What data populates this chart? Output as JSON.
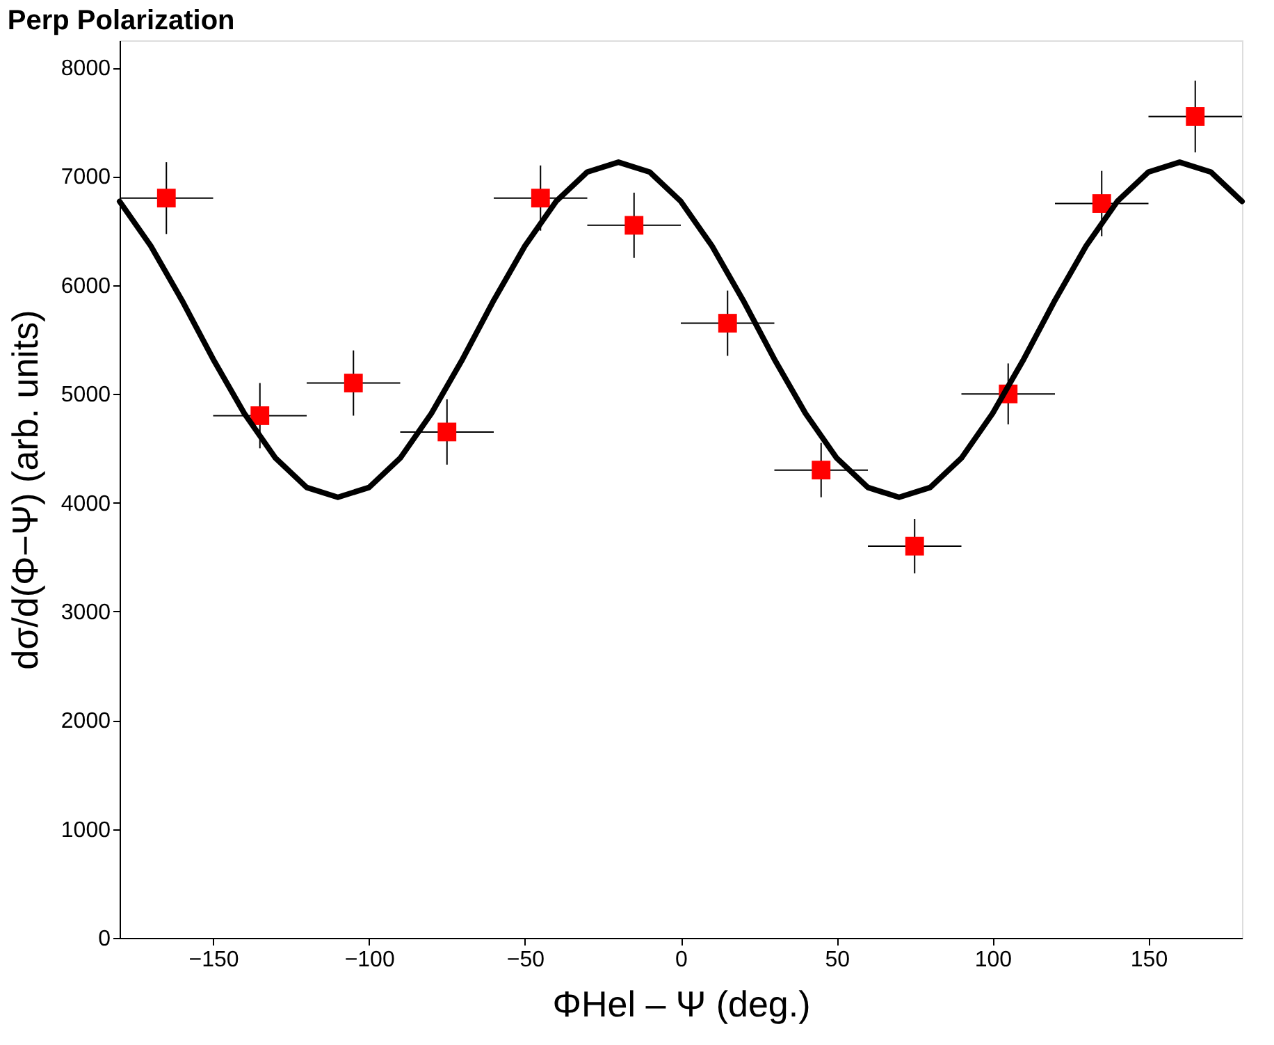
{
  "chart_data": {
    "type": "scatter",
    "title": "Perp Polarization",
    "xlabel": "ΦHel – Ψ (deg.)",
    "ylabel": "dσ/d(Φ−Ψ) (arb. units)",
    "xlim": [
      -180,
      180
    ],
    "xticks": [
      -150,
      -100,
      -50,
      0,
      50,
      100,
      150
    ],
    "ylim": [
      0,
      8250
    ],
    "yticks": [
      0,
      1000,
      2000,
      3000,
      4000,
      5000,
      6000,
      7000,
      8000
    ],
    "grid": false,
    "series": [
      {
        "color": "#ff0000",
        "marker": "square",
        "x": [
          -165,
          -135,
          -105,
          -75,
          -45,
          -15,
          15,
          45,
          75,
          105,
          135,
          165
        ],
        "values": [
          6800,
          4800,
          5100,
          4650,
          6800,
          6550,
          5650,
          4300,
          3600,
          5000,
          6750,
          7550
        ],
        "errors": [
          330,
          300,
          300,
          300,
          300,
          300,
          300,
          250,
          250,
          280,
          300,
          330
        ],
        "xerrors": [
          15,
          15,
          15,
          15,
          15,
          15,
          15,
          15,
          15,
          15,
          15,
          15
        ]
      },
      {
        "type": "line",
        "color": "#000000",
        "line_style": "solid",
        "x": [
          -180,
          -170,
          -160,
          -150,
          -140,
          -130,
          -120,
          -110,
          -100,
          -90,
          -80,
          -70,
          -60,
          -50,
          -40,
          -30,
          -20,
          -10,
          0,
          10,
          20,
          30,
          40,
          50,
          60,
          70,
          80,
          90,
          100,
          110,
          120,
          130,
          140,
          150,
          160,
          170,
          180
        ],
        "values": [
          6770,
          6360,
          5860,
          5320,
          4820,
          4410,
          4140,
          4050,
          4140,
          4410,
          4820,
          5320,
          5860,
          6360,
          6770,
          7040,
          7130,
          7040,
          6770,
          6360,
          5860,
          5320,
          4820,
          4410,
          4140,
          4050,
          4140,
          4410,
          4820,
          5320,
          5860,
          6360,
          6770,
          7040,
          7130,
          7040,
          6770
        ]
      }
    ]
  }
}
